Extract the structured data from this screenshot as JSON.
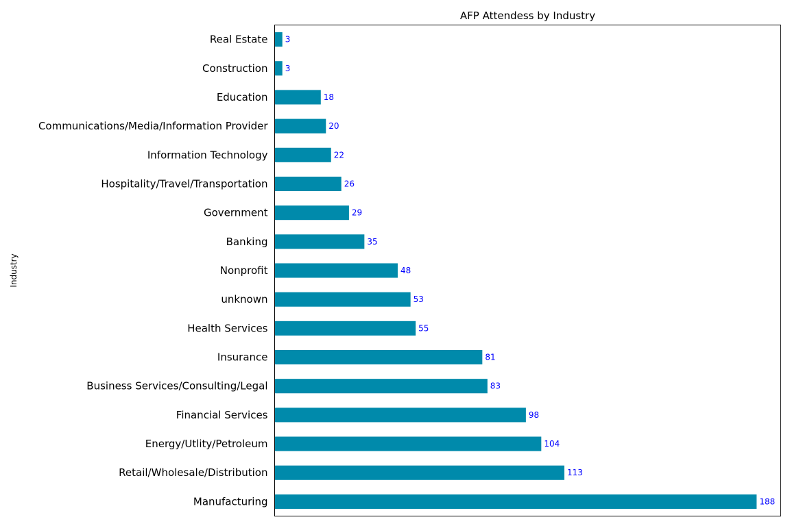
{
  "chart_data": {
    "type": "bar",
    "orientation": "horizontal",
    "title": "AFP Attendess by Industry",
    "xlabel": "",
    "ylabel": "Industry",
    "categories": [
      "Real Estate",
      "Construction",
      "Education",
      "Communications/Media/Information Provider",
      "Information Technology",
      "Hospitality/Travel/Transportation",
      "Government",
      "Banking",
      "Nonprofit",
      "unknown",
      "Health Services",
      "Insurance",
      "Business Services/Consulting/Legal",
      "Financial Services",
      "Energy/Utlity/Petroleum",
      "Retail/Wholesale/Distribution",
      "Manufacturing"
    ],
    "values": [
      3,
      3,
      18,
      20,
      22,
      26,
      29,
      35,
      48,
      53,
      55,
      81,
      83,
      98,
      104,
      113,
      188
    ],
    "xlim": [
      0,
      197.4
    ],
    "x_ticks_visible": false,
    "grid": false,
    "legend": "none",
    "bar_color": "#008aab",
    "value_label_color": "#0000ff"
  }
}
